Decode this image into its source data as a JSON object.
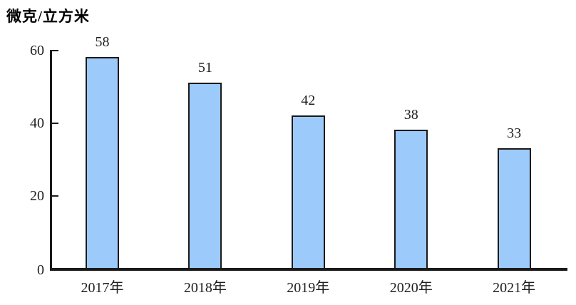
{
  "chart": {
    "title": "微克/立方米",
    "colors": {
      "bar_fill": "#9ccafa",
      "bar_border": "#1a1a1a",
      "axis": "#1a1a1a",
      "text": "#1f1f1f",
      "background": "#ffffff"
    }
  },
  "chart_data": {
    "type": "bar",
    "title": "微克/立方米",
    "categories": [
      "2017年",
      "2018年",
      "2019年",
      "2020年",
      "2021年"
    ],
    "values": [
      58,
      51,
      42,
      38,
      33
    ],
    "data_labels": [
      "58",
      "51",
      "42",
      "38",
      "33"
    ],
    "xlabel": "",
    "ylabel": "微克/立方米",
    "ylim": [
      0,
      60
    ],
    "yticks": [
      0,
      20,
      40,
      60
    ],
    "grid": false,
    "legend": false
  }
}
